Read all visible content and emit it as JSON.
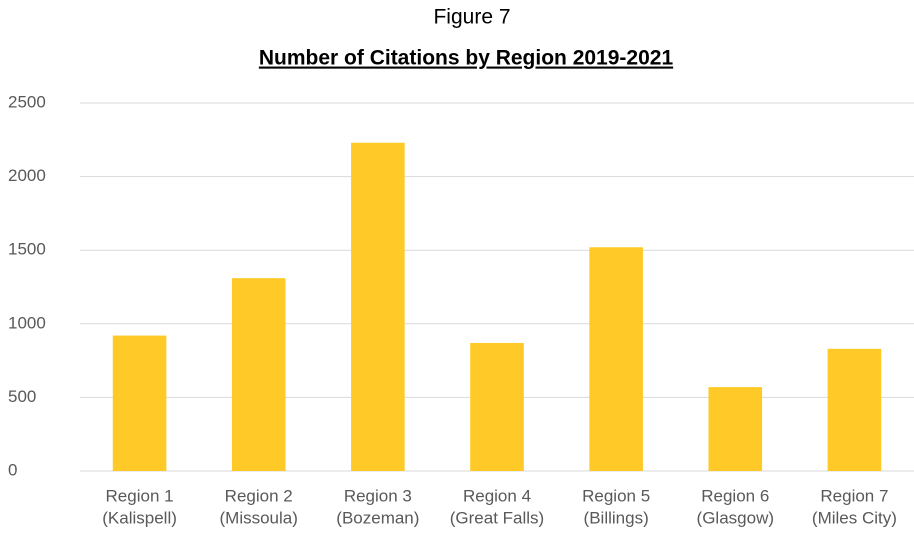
{
  "chart_data": {
    "type": "bar",
    "title": "Figure 7",
    "subtitle": "Number of Citations by Region 2019-2021",
    "categories": [
      [
        "Region 1",
        "(Kalispell)"
      ],
      [
        "Region 2",
        "(Missoula)"
      ],
      [
        "Region 3",
        "(Bozeman)"
      ],
      [
        "Region 4",
        "(Great Falls)"
      ],
      [
        "Region 5",
        "(Billings)"
      ],
      [
        "Region 6",
        "(Glasgow)"
      ],
      [
        "Region 7",
        "(Miles City)"
      ]
    ],
    "values": [
      920,
      1310,
      2230,
      870,
      1520,
      570,
      830
    ],
    "color": "#ffca28",
    "ylim": [
      0,
      2500
    ],
    "yticks": [
      0,
      500,
      1000,
      1500,
      2000,
      2500
    ],
    "grid": true
  }
}
